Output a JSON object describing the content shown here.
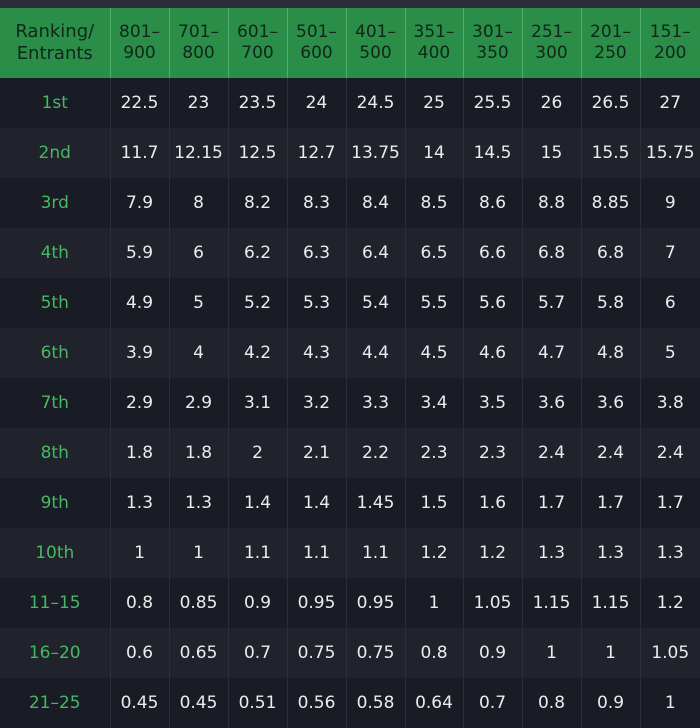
{
  "table": {
    "corner_header": [
      "Ranking/",
      "Entrants"
    ],
    "columns": [
      [
        "801–",
        "900"
      ],
      [
        "701–",
        "800"
      ],
      [
        "601–",
        "700"
      ],
      [
        "501–",
        "600"
      ],
      [
        "401–",
        "500"
      ],
      [
        "351–",
        "400"
      ],
      [
        "301–",
        "350"
      ],
      [
        "251–",
        "300"
      ],
      [
        "201–",
        "250"
      ],
      [
        "151–",
        "200"
      ]
    ],
    "rows": [
      {
        "rank": "1st",
        "values": [
          "22.5",
          "23",
          "23.5",
          "24",
          "24.5",
          "25",
          "25.5",
          "26",
          "26.5",
          "27"
        ]
      },
      {
        "rank": "2nd",
        "values": [
          "11.7",
          "12.15",
          "12.5",
          "12.7",
          "13.75",
          "14",
          "14.5",
          "15",
          "15.5",
          "15.75"
        ]
      },
      {
        "rank": "3rd",
        "values": [
          "7.9",
          "8",
          "8.2",
          "8.3",
          "8.4",
          "8.5",
          "8.6",
          "8.8",
          "8.85",
          "9"
        ]
      },
      {
        "rank": "4th",
        "values": [
          "5.9",
          "6",
          "6.2",
          "6.3",
          "6.4",
          "6.5",
          "6.6",
          "6.8",
          "6.8",
          "7"
        ]
      },
      {
        "rank": "5th",
        "values": [
          "4.9",
          "5",
          "5.2",
          "5.3",
          "5.4",
          "5.5",
          "5.6",
          "5.7",
          "5.8",
          "6"
        ]
      },
      {
        "rank": "6th",
        "values": [
          "3.9",
          "4",
          "4.2",
          "4.3",
          "4.4",
          "4.5",
          "4.6",
          "4.7",
          "4.8",
          "5"
        ]
      },
      {
        "rank": "7th",
        "values": [
          "2.9",
          "2.9",
          "3.1",
          "3.2",
          "3.3",
          "3.4",
          "3.5",
          "3.6",
          "3.6",
          "3.8"
        ]
      },
      {
        "rank": "8th",
        "values": [
          "1.8",
          "1.8",
          "2",
          "2.1",
          "2.2",
          "2.3",
          "2.3",
          "2.4",
          "2.4",
          "2.4"
        ]
      },
      {
        "rank": "9th",
        "values": [
          "1.3",
          "1.3",
          "1.4",
          "1.4",
          "1.45",
          "1.5",
          "1.6",
          "1.7",
          "1.7",
          "1.7"
        ]
      },
      {
        "rank": "10th",
        "values": [
          "1",
          "1",
          "1.1",
          "1.1",
          "1.1",
          "1.2",
          "1.2",
          "1.3",
          "1.3",
          "1.3"
        ]
      },
      {
        "rank": "11–15",
        "values": [
          "0.8",
          "0.85",
          "0.9",
          "0.95",
          "0.95",
          "1",
          "1.05",
          "1.15",
          "1.15",
          "1.2"
        ]
      },
      {
        "rank": "16–20",
        "values": [
          "0.6",
          "0.65",
          "0.7",
          "0.75",
          "0.75",
          "0.8",
          "0.9",
          "1",
          "1",
          "1.05"
        ]
      },
      {
        "rank": "21–25",
        "values": [
          "0.45",
          "0.45",
          "0.51",
          "0.56",
          "0.58",
          "0.64",
          "0.7",
          "0.8",
          "0.9",
          "1"
        ]
      }
    ]
  },
  "colors": {
    "header_bg": "#2a8d48",
    "header_text": "#10271a",
    "rank_text": "#46b863",
    "row_bg_odd": "#1a1c25",
    "row_bg_even": "#20222c",
    "value_text": "#ececec"
  }
}
